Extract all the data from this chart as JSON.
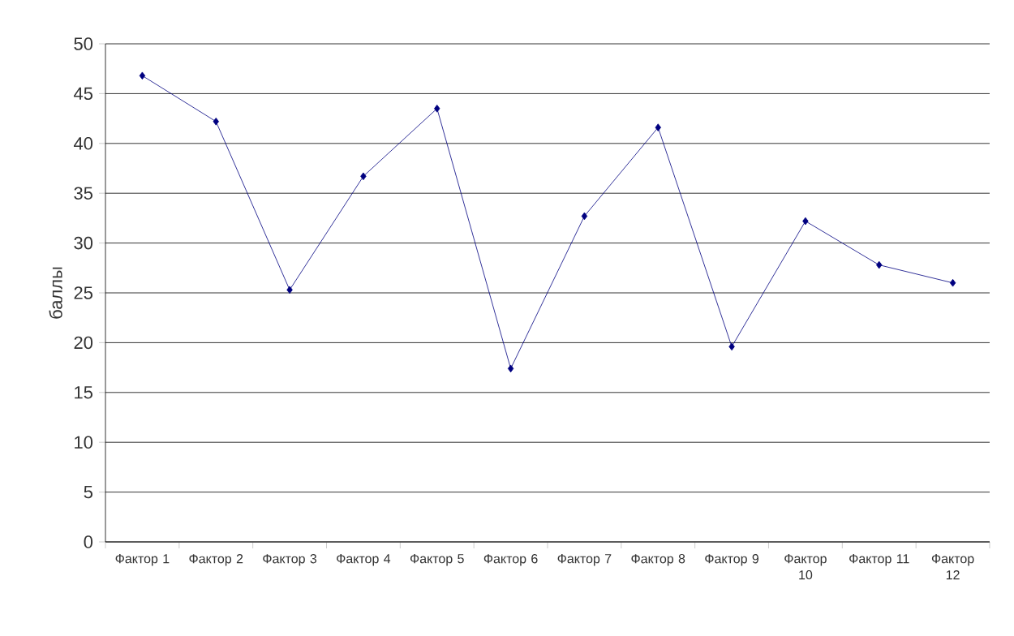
{
  "chart_data": {
    "type": "line",
    "ylabel": "баллы",
    "categories": [
      "Фактор 1",
      "Фактор 2",
      "Фактор 3",
      "Фактор 4",
      "Фактор 5",
      "Фактор 6",
      "Фактор 7",
      "Фактор 8",
      "Фактор 9",
      "Фактор 10",
      "Фактор 11",
      "Фактор 12"
    ],
    "series": [
      {
        "color": "#000080",
        "values": [
          46.8,
          42.2,
          25.3,
          36.7,
          43.5,
          17.4,
          32.7,
          41.6,
          19.6,
          32.2,
          27.8,
          26.0
        ]
      }
    ],
    "ylim": [
      0,
      50
    ],
    "yticks": [
      0,
      5,
      10,
      15,
      20,
      25,
      30,
      35,
      40,
      45,
      50
    ],
    "grid": "y",
    "marker": "diamond",
    "line_style": "solid"
  }
}
